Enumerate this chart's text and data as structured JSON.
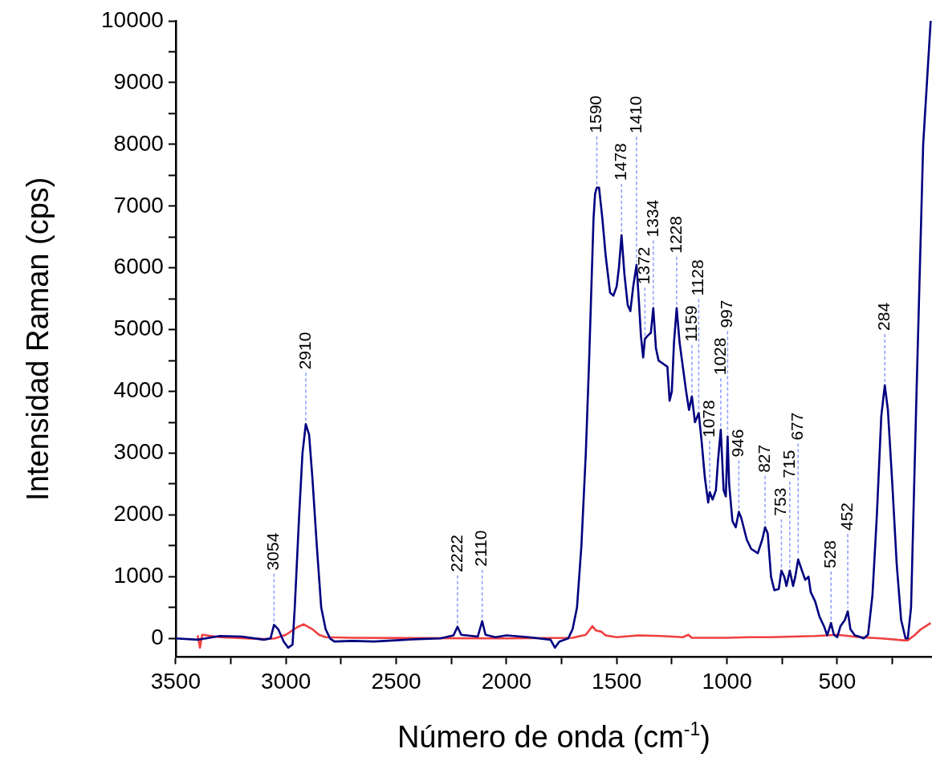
{
  "chart_data": {
    "type": "line",
    "xlabel": "Número de onda (cm$^{-1}$)",
    "ylabel": "Intensidad Raman (cps)",
    "xlim": [
      3500,
      70
    ],
    "ylim": [
      -300,
      10000
    ],
    "xticks": [
      3500,
      {
        "value": 3250,
        "label": null
      },
      3000,
      {
        "value": 2750,
        "label": null
      },
      2500,
      {
        "value": 2250,
        "label": null
      },
      2000,
      {
        "value": 1750,
        "label": null
      },
      1500,
      {
        "value": 1250,
        "label": null
      },
      1000,
      {
        "value": 750,
        "label": null
      },
      500,
      {
        "value": 250,
        "label": null
      }
    ],
    "yticks": [
      0,
      {
        "value": 500,
        "label": null
      },
      1000,
      {
        "value": 1500,
        "label": null
      },
      2000,
      {
        "value": 2500,
        "label": null
      },
      3000,
      {
        "value": 3500,
        "label": null
      },
      4000,
      {
        "value": 4500,
        "label": null
      },
      5000,
      {
        "value": 5500,
        "label": null
      },
      6000,
      {
        "value": 6500,
        "label": null
      },
      7000,
      {
        "value": 7500,
        "label": null
      },
      8000,
      {
        "value": 8500,
        "label": null
      },
      9000,
      {
        "value": 9500,
        "label": null
      },
      10000
    ],
    "marker": "none",
    "line_style": "solid",
    "legend": false,
    "grid": false,
    "series": [
      {
        "color": "#000080",
        "x": [
          3500,
          3400,
          3300,
          3200,
          3100,
          3070,
          3054,
          3035,
          3010,
          2990,
          2970,
          2960,
          2940,
          2925,
          2910,
          2895,
          2880,
          2860,
          2840,
          2820,
          2800,
          2780,
          2700,
          2600,
          2500,
          2400,
          2300,
          2240,
          2222,
          2205,
          2130,
          2110,
          2095,
          2050,
          2000,
          1900,
          1800,
          1780,
          1760,
          1720,
          1700,
          1680,
          1660,
          1640,
          1625,
          1612,
          1605,
          1598,
          1590,
          1580,
          1565,
          1550,
          1530,
          1515,
          1500,
          1490,
          1478,
          1465,
          1450,
          1438,
          1425,
          1410,
          1400,
          1390,
          1380,
          1372,
          1360,
          1345,
          1334,
          1322,
          1310,
          1290,
          1270,
          1260,
          1250,
          1240,
          1228,
          1215,
          1200,
          1185,
          1172,
          1159,
          1145,
          1128,
          1115,
          1100,
          1085,
          1078,
          1065,
          1050,
          1040,
          1028,
          1015,
          1005,
          997,
          990,
          975,
          960,
          946,
          935,
          910,
          890,
          860,
          840,
          827,
          815,
          800,
          785,
          765,
          753,
          740,
          730,
          715,
          700,
          690,
          677,
          660,
          645,
          630,
          620,
          600,
          580,
          560,
          545,
          528,
          515,
          500,
          485,
          465,
          452,
          440,
          420,
          400,
          380,
          360,
          340,
          320,
          300,
          284,
          270,
          250,
          230,
          210,
          190,
          180,
          165,
          140,
          110,
          76
        ],
        "values": [
          0,
          -20,
          40,
          30,
          -20,
          0,
          220,
          150,
          -50,
          -150,
          -100,
          500,
          2000,
          3000,
          3470,
          3300,
          2600,
          1500,
          500,
          150,
          0,
          -50,
          -40,
          -50,
          -30,
          -10,
          0,
          50,
          190,
          60,
          30,
          280,
          60,
          20,
          50,
          20,
          -20,
          -150,
          -50,
          0,
          150,
          500,
          1500,
          3000,
          4500,
          6000,
          6800,
          7200,
          7300,
          7300,
          6800,
          6200,
          5600,
          5550,
          5700,
          6000,
          6530,
          5900,
          5400,
          5300,
          5700,
          6050,
          5500,
          4900,
          4550,
          4850,
          4900,
          4950,
          5350,
          4700,
          4500,
          4450,
          4400,
          3850,
          4000,
          4800,
          5350,
          4800,
          4400,
          4000,
          3700,
          3920,
          3500,
          3650,
          3200,
          2600,
          2200,
          2370,
          2250,
          2400,
          2900,
          3380,
          2400,
          2300,
          3270,
          2500,
          1900,
          1800,
          2050,
          1950,
          1600,
          1450,
          1380,
          1600,
          1800,
          1700,
          1000,
          780,
          800,
          1100,
          1000,
          850,
          1100,
          850,
          1000,
          1280,
          1100,
          950,
          1000,
          750,
          600,
          350,
          200,
          50,
          250,
          60,
          20,
          200,
          300,
          440,
          150,
          50,
          30,
          0,
          60,
          700,
          2000,
          3600,
          4100,
          3700,
          2500,
          1200,
          300,
          0,
          0,
          500,
          4000,
          8000,
          10000
        ]
      },
      {
        "color": "#ef4040",
        "x": [
          3400,
          3390,
          3380,
          3300,
          3100,
          3050,
          3000,
          2950,
          2920,
          2880,
          2850,
          2820,
          2700,
          2000,
          1700,
          1640,
          1610,
          1595,
          1570,
          1550,
          1500,
          1400,
          1300,
          1200,
          1175,
          1160,
          1000,
          900,
          800,
          700,
          600,
          500,
          400,
          300,
          200,
          180,
          150,
          120,
          76
        ],
        "values": [
          50,
          -150,
          60,
          20,
          -10,
          0,
          60,
          180,
          230,
          150,
          60,
          20,
          10,
          0,
          10,
          60,
          200,
          130,
          110,
          50,
          20,
          50,
          40,
          20,
          60,
          10,
          10,
          20,
          20,
          30,
          40,
          60,
          20,
          0,
          -30,
          -30,
          50,
          150,
          250
        ]
      }
    ],
    "annotations": [
      {
        "text": "3054",
        "x": 3054,
        "y": 220
      },
      {
        "text": "2910",
        "x": 2910,
        "y": 3470
      },
      {
        "text": "2222",
        "x": 2222,
        "y": 190
      },
      {
        "text": "2110",
        "x": 2110,
        "y": 280
      },
      {
        "text": "1590",
        "x": 1590,
        "y": 7300
      },
      {
        "text": "1478",
        "x": 1478,
        "y": 6530
      },
      {
        "text": "1410",
        "x": 1410,
        "y": 6050
      },
      {
        "text": "1372",
        "x": 1372,
        "y": 4850
      },
      {
        "text": "1334",
        "x": 1334,
        "y": 5350
      },
      {
        "text": "1228",
        "x": 1228,
        "y": 5350
      },
      {
        "text": "1159",
        "x": 1159,
        "y": 3920
      },
      {
        "text": "1128",
        "x": 1128,
        "y": 3650
      },
      {
        "text": "1078",
        "x": 1078,
        "y": 2370
      },
      {
        "text": "1028",
        "x": 1028,
        "y": 3380
      },
      {
        "text": "997",
        "x": 997,
        "y": 3270
      },
      {
        "text": "946",
        "x": 946,
        "y": 2050
      },
      {
        "text": "827",
        "x": 827,
        "y": 1800
      },
      {
        "text": "753",
        "x": 753,
        "y": 1100
      },
      {
        "text": "715",
        "x": 715,
        "y": 1100
      },
      {
        "text": "677",
        "x": 677,
        "y": 1280
      },
      {
        "text": "528",
        "x": 528,
        "y": 250
      },
      {
        "text": "452",
        "x": 452,
        "y": 440
      },
      {
        "text": "284",
        "x": 284,
        "y": 4100
      }
    ]
  }
}
